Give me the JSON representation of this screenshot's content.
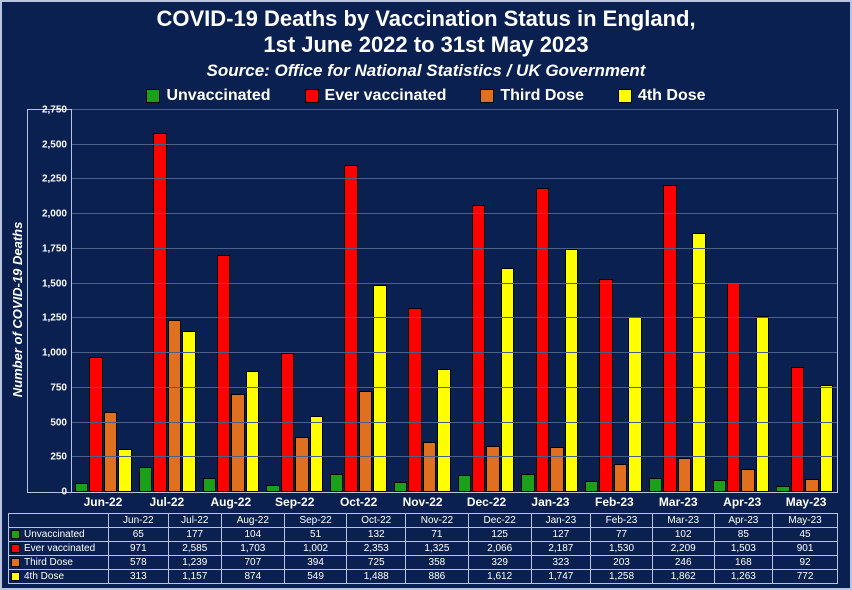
{
  "title_line1": "COVID-19 Deaths by Vaccination Status in England,",
  "title_line2": "1st June 2022 to 31st May 2023",
  "source": "Source: Office for National Statistics / UK Government",
  "ylabel": "Number of COVID-19 Deaths",
  "background_color": "#0a2050",
  "grid_color": "#4a5f8a",
  "border_color": "#b8c4e0",
  "text_color": "#ffffff",
  "chart": {
    "type": "bar",
    "ymax": 2750,
    "ytick_step": 250,
    "ymin": 0,
    "categories": [
      "Jun-22",
      "Jul-22",
      "Aug-22",
      "Sep-22",
      "Oct-22",
      "Nov-22",
      "Dec-22",
      "Jan-23",
      "Feb-23",
      "Mar-23",
      "Apr-23",
      "May-23"
    ],
    "series": [
      {
        "name": "Unvaccinated",
        "color": "#1aa01a",
        "values": [
          65,
          177,
          104,
          51,
          132,
          71,
          125,
          127,
          77,
          102,
          85,
          45
        ]
      },
      {
        "name": "Ever vaccinated",
        "color": "#ff0000",
        "values": [
          971,
          2585,
          1703,
          1002,
          2353,
          1325,
          2066,
          2187,
          1530,
          2209,
          1503,
          901
        ]
      },
      {
        "name": "Third Dose",
        "color": "#e07020",
        "values": [
          578,
          1239,
          707,
          394,
          725,
          358,
          329,
          323,
          203,
          246,
          168,
          92
        ]
      },
      {
        "name": "4th Dose",
        "color": "#ffff00",
        "values": [
          313,
          1157,
          874,
          549,
          1488,
          886,
          1612,
          1747,
          1258,
          1862,
          1263,
          772
        ]
      }
    ],
    "bar_border": "#000000",
    "font_family": "Arial",
    "title_fontsize": 22,
    "source_fontsize": 17,
    "legend_fontsize": 16,
    "tick_fontsize": 10,
    "xlabel_fontsize": 12,
    "ylabel_fontsize": 13,
    "table_fontsize": 10
  }
}
